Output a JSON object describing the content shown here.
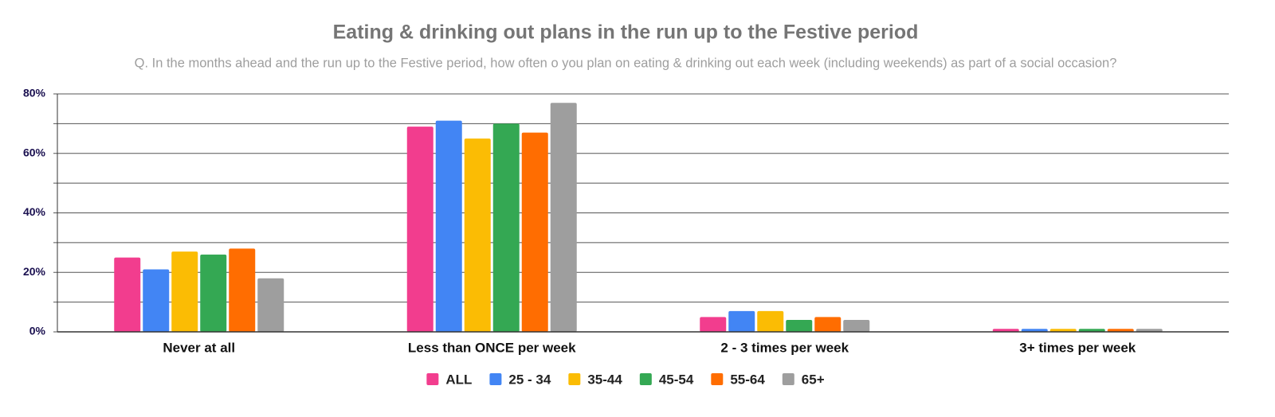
{
  "chart_data": {
    "type": "bar",
    "title": "Eating & drinking out plans in the run up to the Festive period",
    "subtitle": "Q. In the months ahead and the run up to the Festive period, how often o you plan on eating & drinking out each week (including weekends) as part of a social occasion?",
    "categories": [
      "Never at all",
      "Less than ONCE per week",
      "2 - 3 times per week",
      "3+ times per week"
    ],
    "series": [
      {
        "name": "ALL",
        "color": "#f23d8e",
        "values": [
          25,
          69,
          5,
          1
        ]
      },
      {
        "name": "25 - 34",
        "color": "#4285f4",
        "values": [
          21,
          71,
          7,
          1
        ]
      },
      {
        "name": "35-44",
        "color": "#fbbc04",
        "values": [
          27,
          65,
          7,
          1
        ]
      },
      {
        "name": "45-54",
        "color": "#34a853",
        "values": [
          26,
          70,
          4,
          1
        ]
      },
      {
        "name": "55-64",
        "color": "#ff6d01",
        "values": [
          28,
          67,
          5,
          1
        ]
      },
      {
        "name": "65+",
        "color": "#9e9e9e",
        "values": [
          18,
          77,
          4,
          1
        ]
      }
    ],
    "ylim": [
      0,
      80
    ],
    "yticks": [
      {
        "value": 0,
        "label": "0%"
      },
      {
        "value": 20,
        "label": "20%"
      },
      {
        "value": 40,
        "label": "40%"
      },
      {
        "value": 60,
        "label": "60%"
      },
      {
        "value": 80,
        "label": "80%"
      }
    ],
    "minor_yticks": [
      10,
      30,
      50,
      70
    ],
    "grid": true,
    "legend": "bottom"
  }
}
